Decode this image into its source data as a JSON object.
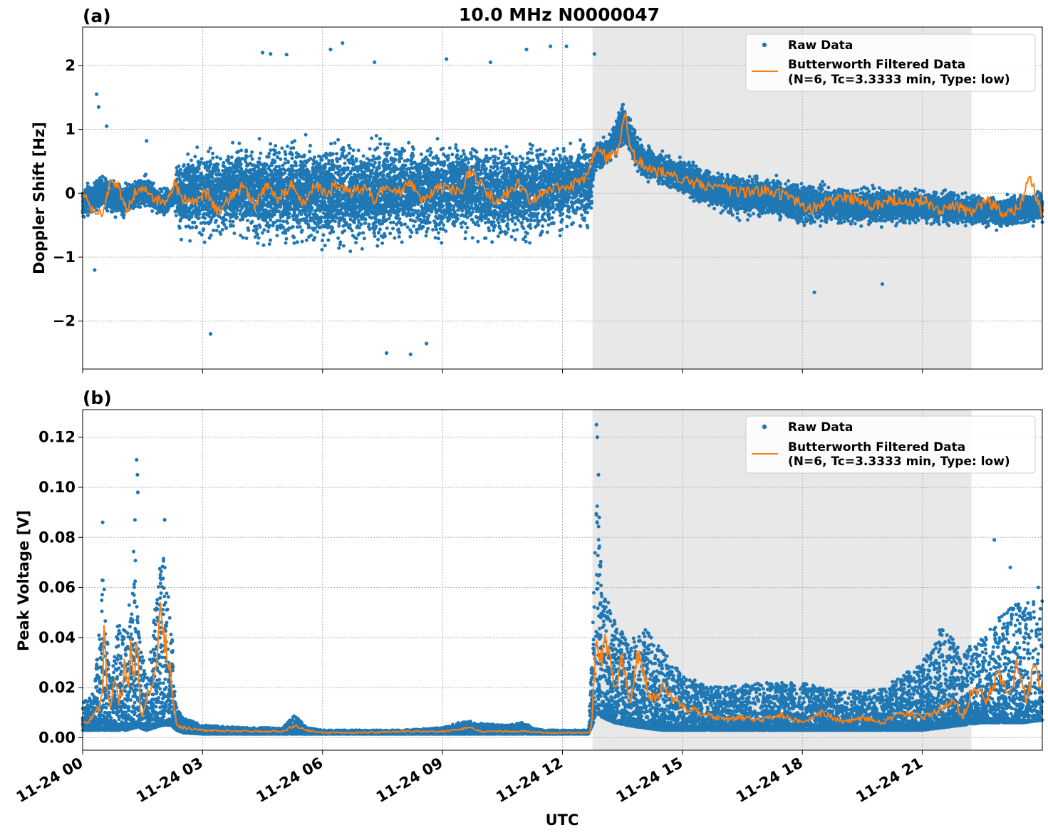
{
  "figure": {
    "title": "10.0 MHz N0000047",
    "xlabel": "UTC",
    "x_tick_labels": [
      "11-24 00",
      "11-24 03",
      "11-24 06",
      "11-24 09",
      "11-24 12",
      "11-24 15",
      "11-24 18",
      "11-24 21"
    ],
    "shaded_interval_hours": [
      12.75,
      22.23
    ],
    "colors": {
      "raw": "#1f77b4",
      "filtered": "#ff7f0e",
      "shade": "#e8e8e8",
      "grid": "#b0b0b0"
    },
    "legend": {
      "raw_label": "Raw Data",
      "filtered_label_line1": "Butterworth Filtered Data",
      "filtered_label_line2": "(N=6, Tc=3.3333 min, Type: low)",
      "placement": "top-right"
    }
  },
  "chart_data": [
    {
      "type": "scatter",
      "panel_label": "(a)",
      "ylabel": "Doppler Shift [Hz]",
      "xlim_hours": [
        0,
        24
      ],
      "ylim": [
        -2.75,
        2.6
      ],
      "y_ticks": [
        -2,
        -1,
        0,
        1,
        2
      ],
      "y_tick_labels": [
        "−2",
        "−1",
        "0",
        "1",
        "2"
      ],
      "grid": true,
      "series": [
        {
          "name": "Raw Data",
          "kind": "scatter",
          "envelope": {
            "x": [
              0,
              0.5,
              1.0,
              1.5,
              2.0,
              2.3,
              2.4,
              3.0,
              4.0,
              5.0,
              6.0,
              7.0,
              8.0,
              9.0,
              10.0,
              11.0,
              12.0,
              12.7,
              12.8,
              13.2,
              13.5,
              14.0,
              15.0,
              16.0,
              17.0,
              18.0,
              19.0,
              20.0,
              21.0,
              22.0,
              23.0,
              24.0
            ],
            "center": [
              -0.15,
              0.05,
              -0.15,
              0.05,
              -0.15,
              -0.05,
              0.0,
              0.0,
              0.05,
              0.0,
              0.0,
              0.0,
              0.05,
              0.05,
              0.05,
              0.0,
              0.1,
              0.15,
              0.55,
              0.7,
              1.1,
              0.5,
              0.25,
              0.0,
              -0.05,
              -0.15,
              -0.2,
              -0.2,
              -0.2,
              -0.25,
              -0.3,
              -0.2
            ],
            "half_width": [
              0.4,
              0.4,
              0.35,
              0.35,
              0.3,
              0.3,
              0.9,
              1.0,
              1.0,
              1.05,
              1.1,
              1.1,
              1.05,
              1.05,
              1.0,
              1.0,
              0.95,
              0.95,
              0.3,
              0.3,
              0.45,
              0.35,
              0.4,
              0.45,
              0.45,
              0.45,
              0.4,
              0.4,
              0.35,
              0.35,
              0.35,
              0.35
            ]
          },
          "outliers": [
            [
              0.35,
              1.55
            ],
            [
              0.4,
              1.35
            ],
            [
              0.6,
              1.05
            ],
            [
              0.3,
              -1.2
            ],
            [
              1.6,
              0.82
            ],
            [
              4.5,
              2.2
            ],
            [
              4.7,
              2.18
            ],
            [
              5.1,
              2.17
            ],
            [
              6.2,
              2.25
            ],
            [
              6.5,
              2.35
            ],
            [
              7.3,
              2.05
            ],
            [
              8.2,
              -2.52
            ],
            [
              8.6,
              -2.35
            ],
            [
              11.1,
              2.25
            ],
            [
              11.7,
              2.3
            ],
            [
              12.1,
              2.3
            ],
            [
              12.8,
              2.18
            ],
            [
              18.3,
              -1.55
            ],
            [
              20.0,
              -1.42
            ],
            [
              3.2,
              -2.2
            ],
            [
              7.6,
              -2.5
            ],
            [
              9.1,
              2.1
            ],
            [
              10.2,
              2.05
            ]
          ]
        },
        {
          "name": "Butterworth Filtered Data",
          "kind": "line",
          "x": [
            0,
            0.3,
            0.5,
            0.7,
            0.9,
            1.1,
            1.3,
            1.5,
            1.8,
            2.1,
            2.3,
            2.5,
            2.8,
            3.1,
            3.4,
            3.7,
            4.0,
            4.3,
            4.6,
            4.9,
            5.2,
            5.5,
            5.8,
            6.1,
            6.4,
            6.7,
            7.0,
            7.3,
            7.6,
            7.9,
            8.2,
            8.5,
            8.8,
            9.1,
            9.4,
            9.7,
            10.0,
            10.3,
            10.6,
            10.9,
            11.2,
            11.5,
            11.8,
            12.1,
            12.4,
            12.6,
            12.75,
            12.9,
            13.1,
            13.3,
            13.45,
            13.55,
            13.7,
            14.0,
            14.3,
            14.7,
            15.0,
            15.4,
            15.8,
            16.2,
            16.6,
            17.0,
            17.4,
            17.8,
            18.2,
            18.6,
            19.0,
            19.4,
            19.8,
            20.2,
            20.6,
            21.0,
            21.4,
            21.8,
            22.2,
            22.6,
            23.0,
            23.4,
            23.7,
            24.0
          ],
          "y": [
            0.0,
            -0.3,
            -0.35,
            0.15,
            0.1,
            -0.3,
            0.0,
            0.1,
            -0.1,
            -0.1,
            0.15,
            -0.1,
            -0.1,
            0.0,
            -0.3,
            -0.05,
            0.1,
            -0.2,
            0.1,
            -0.1,
            0.15,
            -0.2,
            0.1,
            0.0,
            0.15,
            0.0,
            0.1,
            -0.1,
            0.1,
            0.0,
            0.15,
            -0.1,
            0.05,
            0.1,
            0.0,
            0.35,
            0.1,
            -0.1,
            0.0,
            0.15,
            -0.1,
            0.0,
            0.1,
            0.05,
            0.2,
            0.25,
            0.55,
            0.75,
            0.55,
            0.6,
            0.8,
            1.3,
            0.65,
            0.45,
            0.35,
            0.3,
            0.2,
            0.15,
            0.1,
            0.05,
            0.0,
            0.05,
            0.0,
            -0.1,
            -0.25,
            -0.15,
            -0.05,
            -0.1,
            -0.2,
            -0.1,
            -0.15,
            -0.1,
            -0.25,
            -0.2,
            -0.3,
            -0.1,
            -0.3,
            -0.25,
            0.25,
            -0.35
          ]
        }
      ]
    },
    {
      "type": "scatter",
      "panel_label": "(b)",
      "ylabel": "Peak Voltage [V]",
      "xlim_hours": [
        0,
        24
      ],
      "ylim": [
        -0.005,
        0.131
      ],
      "y_ticks": [
        0,
        0.02,
        0.04,
        0.06,
        0.08,
        0.1,
        0.12
      ],
      "y_tick_labels": [
        "0.00",
        "0.02",
        "0.04",
        "0.06",
        "0.08",
        "0.10",
        "0.12"
      ],
      "grid": true,
      "series": [
        {
          "name": "Raw Data",
          "kind": "scatter",
          "envelope": {
            "x": [
              0,
              0.3,
              0.5,
              0.7,
              0.9,
              1.1,
              1.3,
              1.4,
              1.6,
              1.8,
              2.0,
              2.2,
              2.35,
              2.5,
              3.0,
              4.0,
              5.0,
              5.3,
              5.6,
              6.0,
              7.0,
              8.0,
              9.0,
              9.6,
              9.8,
              10.5,
              11.0,
              11.5,
              12.0,
              12.65,
              12.75,
              12.85,
              13.0,
              13.3,
              13.6,
              14.0,
              14.5,
              15.0,
              15.5,
              16.0,
              17.0,
              18.0,
              19.0,
              20.0,
              21.0,
              21.5,
              22.0,
              22.5,
              23.0,
              23.5,
              24.0
            ],
            "low": [
              0.003,
              0.003,
              0.003,
              0.003,
              0.003,
              0.003,
              0.004,
              0.004,
              0.003,
              0.004,
              0.005,
              0.005,
              0.003,
              0.002,
              0.0015,
              0.0015,
              0.0015,
              0.0015,
              0.0015,
              0.0015,
              0.0015,
              0.0015,
              0.0015,
              0.0015,
              0.0015,
              0.0015,
              0.0015,
              0.0015,
              0.0015,
              0.0015,
              0.005,
              0.01,
              0.008,
              0.006,
              0.005,
              0.004,
              0.003,
              0.003,
              0.003,
              0.003,
              0.003,
              0.003,
              0.003,
              0.003,
              0.003,
              0.004,
              0.005,
              0.006,
              0.006,
              0.006,
              0.007
            ],
            "high": [
              0.014,
              0.02,
              0.07,
              0.02,
              0.05,
              0.05,
              0.09,
              0.05,
              0.02,
              0.05,
              0.078,
              0.05,
              0.012,
              0.008,
              0.005,
              0.004,
              0.004,
              0.009,
              0.004,
              0.003,
              0.003,
              0.003,
              0.004,
              0.007,
              0.006,
              0.005,
              0.006,
              0.003,
              0.003,
              0.003,
              0.04,
              0.1,
              0.06,
              0.05,
              0.04,
              0.045,
              0.035,
              0.025,
              0.022,
              0.02,
              0.022,
              0.022,
              0.018,
              0.02,
              0.03,
              0.045,
              0.035,
              0.04,
              0.05,
              0.055,
              0.055
            ]
          },
          "outliers": [
            [
              0.5,
              0.086
            ],
            [
              1.35,
              0.111
            ],
            [
              1.37,
              0.105
            ],
            [
              1.38,
              0.098
            ],
            [
              2.05,
              0.087
            ],
            [
              12.85,
              0.125
            ],
            [
              12.87,
              0.12
            ],
            [
              12.9,
              0.105
            ],
            [
              12.92,
              0.088
            ],
            [
              22.8,
              0.079
            ],
            [
              23.2,
              0.068
            ],
            [
              23.9,
              0.06
            ]
          ]
        },
        {
          "name": "Butterworth Filtered Data",
          "kind": "line",
          "x": [
            0,
            0.15,
            0.3,
            0.4,
            0.5,
            0.55,
            0.6,
            0.7,
            0.8,
            0.9,
            1.0,
            1.05,
            1.15,
            1.2,
            1.3,
            1.35,
            1.45,
            1.55,
            1.65,
            1.75,
            1.85,
            1.95,
            2.0,
            2.1,
            2.2,
            2.3,
            2.35,
            2.5,
            3.0,
            4.0,
            5.0,
            5.3,
            5.6,
            6.0,
            7.0,
            8.0,
            9.0,
            9.7,
            10.0,
            11.0,
            11.5,
            12.0,
            12.7,
            12.75,
            12.85,
            12.95,
            13.1,
            13.3,
            13.5,
            13.7,
            13.9,
            14.2,
            14.5,
            15.0,
            15.5,
            16.0,
            16.5,
            17.0,
            17.5,
            18.0,
            18.5,
            19.0,
            19.5,
            20.0,
            20.5,
            21.0,
            21.5,
            21.8,
            22.0,
            22.3,
            22.6,
            22.9,
            23.2,
            23.4,
            23.6,
            23.8,
            24.0
          ],
          "y": [
            0.007,
            0.006,
            0.01,
            0.012,
            0.018,
            0.05,
            0.02,
            0.012,
            0.022,
            0.015,
            0.02,
            0.032,
            0.018,
            0.035,
            0.02,
            0.044,
            0.008,
            0.012,
            0.02,
            0.018,
            0.03,
            0.054,
            0.04,
            0.035,
            0.025,
            0.01,
            0.005,
            0.004,
            0.003,
            0.0025,
            0.0025,
            0.005,
            0.003,
            0.002,
            0.002,
            0.0025,
            0.0025,
            0.004,
            0.0025,
            0.0025,
            0.002,
            0.002,
            0.002,
            0.01,
            0.045,
            0.03,
            0.04,
            0.02,
            0.03,
            0.015,
            0.035,
            0.015,
            0.02,
            0.012,
            0.01,
            0.007,
            0.008,
            0.007,
            0.009,
            0.006,
            0.01,
            0.006,
            0.008,
            0.006,
            0.01,
            0.008,
            0.012,
            0.015,
            0.008,
            0.02,
            0.015,
            0.025,
            0.018,
            0.03,
            0.015,
            0.028,
            0.02
          ]
        }
      ]
    }
  ]
}
